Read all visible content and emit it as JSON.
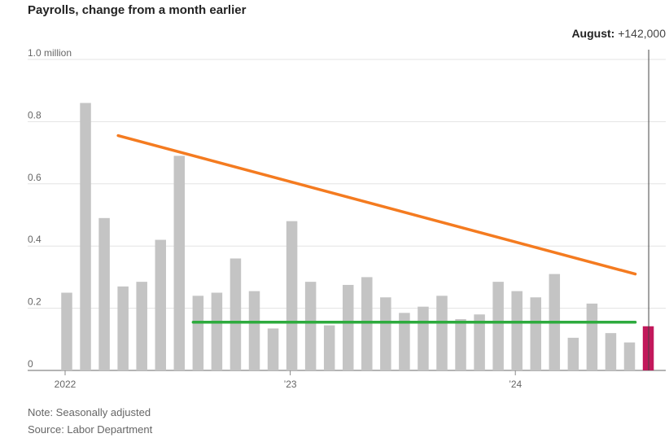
{
  "title": "Payrolls, change from a month earlier",
  "notes": {
    "note": "Note: Seasonally adjusted",
    "source": "Source: Labor Department"
  },
  "chart_data": {
    "type": "bar",
    "title": "Payrolls, change from a month earlier",
    "ylim": [
      0,
      1.0
    ],
    "y_ticks": [
      {
        "value": 0,
        "label": "0"
      },
      {
        "value": 0.2,
        "label": "0.2"
      },
      {
        "value": 0.4,
        "label": "0.4"
      },
      {
        "value": 0.6,
        "label": "0.6"
      },
      {
        "value": 0.8,
        "label": "0.8"
      },
      {
        "value": 1.0,
        "label": "1.0 million"
      }
    ],
    "x_ticks": [
      {
        "index": 0,
        "label": "2022"
      },
      {
        "index": 12,
        "label": "’23"
      },
      {
        "index": 24,
        "label": "’24"
      }
    ],
    "grid": true,
    "values": [
      0.25,
      0.86,
      0.49,
      0.27,
      0.285,
      0.42,
      0.69,
      0.24,
      0.25,
      0.36,
      0.255,
      0.135,
      0.48,
      0.285,
      0.145,
      0.275,
      0.3,
      0.235,
      0.185,
      0.205,
      0.24,
      0.165,
      0.18,
      0.285,
      0.255,
      0.235,
      0.31,
      0.105,
      0.215,
      0.12,
      0.09,
      0.142
    ],
    "highlight_index": 31,
    "colors": {
      "bar": "#c4c4c4",
      "highlight": "#c2185b",
      "trend_down": "#f47b20",
      "trend_flat": "#2eab3e",
      "grid": "#e3e3e3"
    },
    "callout": {
      "label": "August:",
      "value": "+142,000",
      "index": 31
    },
    "annotations": [
      {
        "type": "trend-line",
        "color": "#f47b20",
        "from": {
          "index": 3,
          "value": 0.755
        },
        "to": {
          "index": 31,
          "value": 0.31
        }
      },
      {
        "type": "trend-line",
        "color": "#2eab3e",
        "from": {
          "index": 7,
          "value": 0.155
        },
        "to": {
          "index": 31,
          "value": 0.155
        }
      }
    ]
  }
}
